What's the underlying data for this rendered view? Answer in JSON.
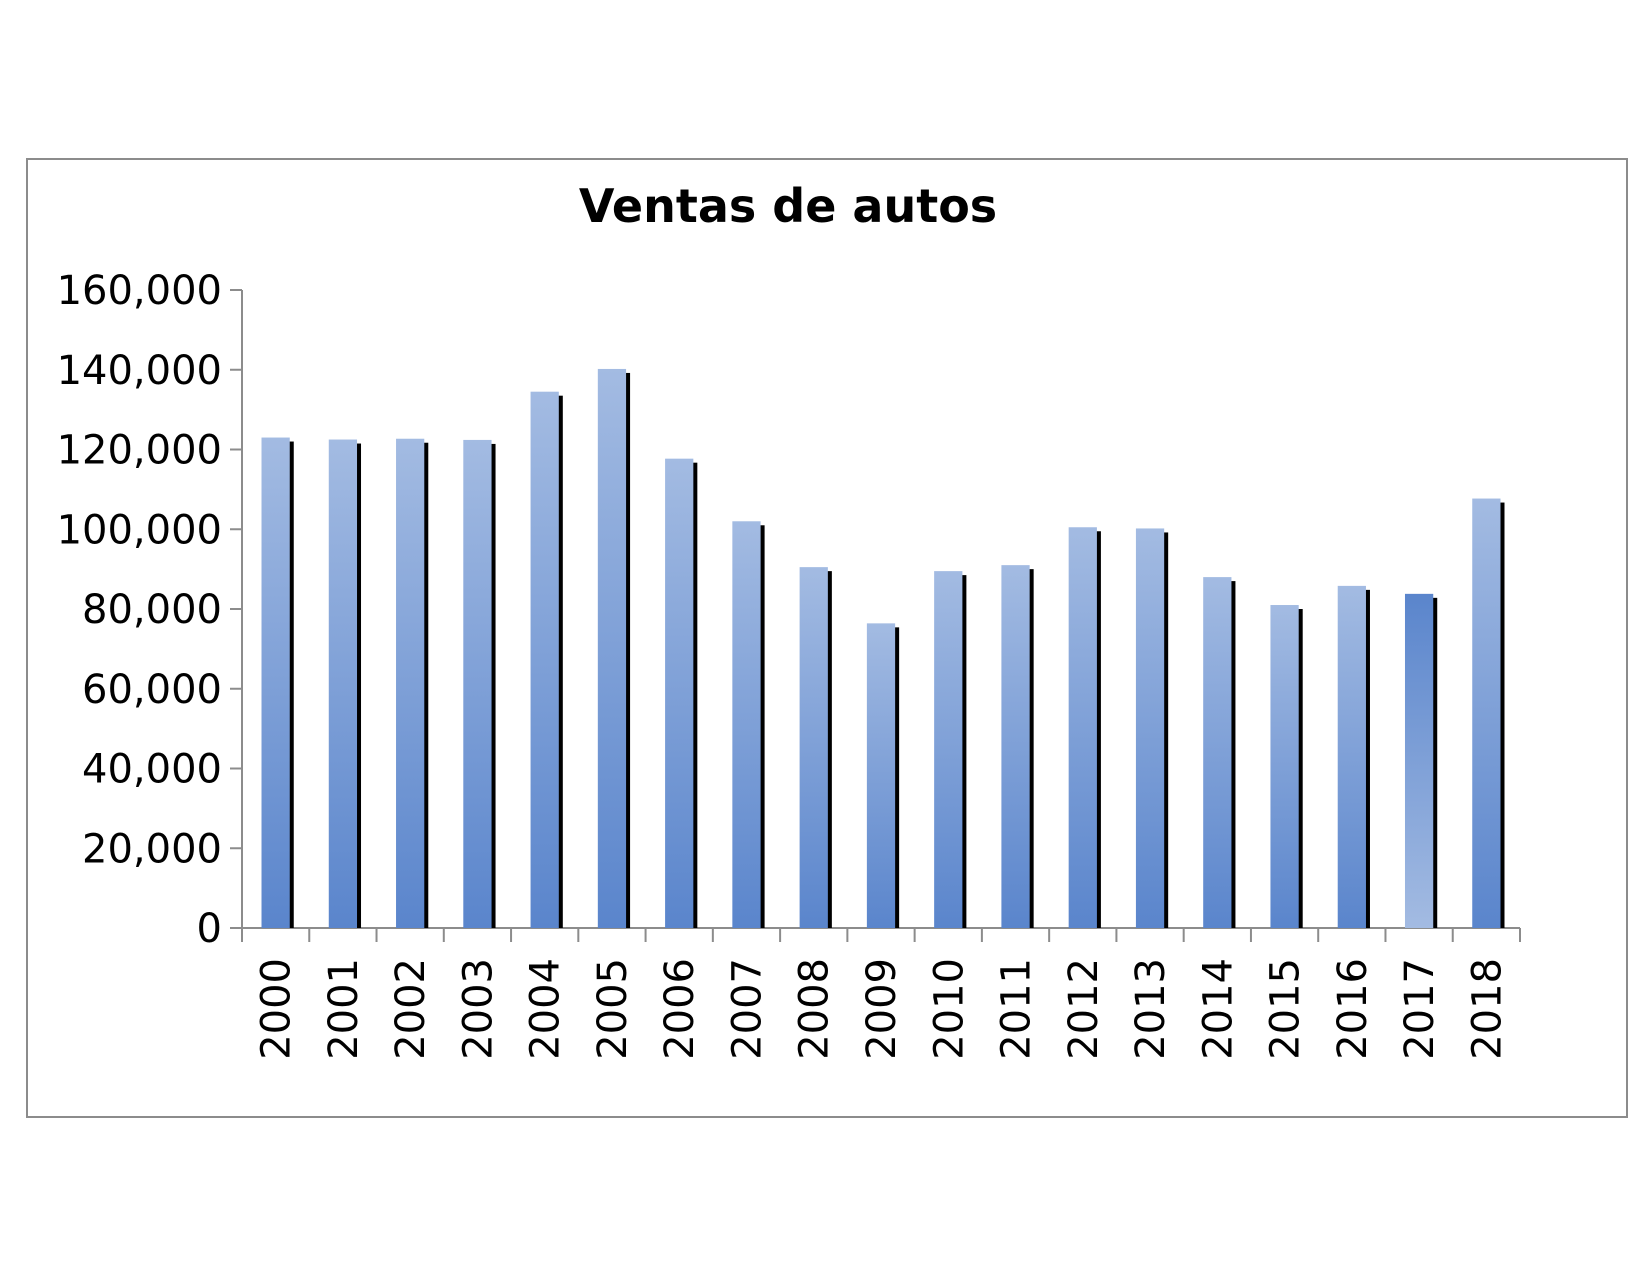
{
  "chart_data": {
    "type": "bar",
    "title": "Ventas de autos",
    "xlabel": "",
    "ylabel": "",
    "categories": [
      "2000",
      "2001",
      "2002",
      "2003",
      "2004",
      "2005",
      "2006",
      "2007",
      "2008",
      "2009",
      "2010",
      "2011",
      "2012",
      "2013",
      "2014",
      "2015",
      "2016",
      "2017",
      "2018"
    ],
    "values": [
      123000,
      122500,
      122700,
      122400,
      134500,
      140200,
      117700,
      102000,
      90500,
      76400,
      89500,
      91000,
      100500,
      100200,
      88000,
      81000,
      85800,
      83800,
      107700
    ],
    "ylim": [
      0,
      160000
    ],
    "yticks": [
      0,
      20000,
      40000,
      60000,
      80000,
      100000,
      120000,
      140000,
      160000
    ],
    "ytick_labels": [
      "0",
      "20,000",
      "40,000",
      "60,000",
      "80,000",
      "100,000",
      "120,000",
      "140,000",
      "160,000"
    ],
    "grid": false,
    "legend": "none",
    "colors": {
      "bar_top": "#a3bbe2",
      "bar_bottom": "#5a85cc",
      "bar_shadow": "#000000",
      "axis": "#8c8c8c",
      "frame": "#8c8c8c"
    }
  }
}
